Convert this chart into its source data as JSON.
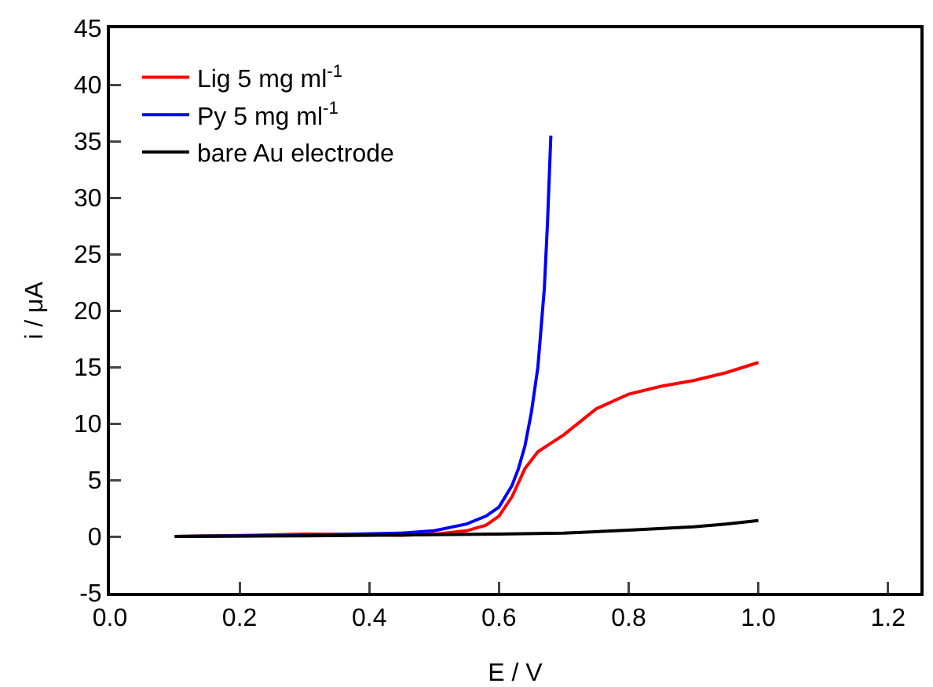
{
  "chart_data": {
    "type": "line",
    "xlabel": "E / V",
    "ylabel": "i / μA",
    "xlim": [
      0,
      1.25
    ],
    "ylim": [
      -5,
      45
    ],
    "xticks": [
      {
        "value": 0,
        "label": "0.0"
      },
      0.2,
      0.4,
      0.6,
      0.8,
      {
        "value": 1,
        "label": "1.0"
      },
      1.2
    ],
    "yticks": [
      -5,
      0,
      5,
      10,
      15,
      20,
      25,
      30,
      35,
      40,
      45
    ],
    "grid": false,
    "legend": "top left",
    "line_style": "solid",
    "marker": "none",
    "series": [
      {
        "name": "Lig 5 mg ml$^{-1}$",
        "color": "#ff0000",
        "x": [
          0.1,
          0.22,
          0.3,
          0.4,
          0.45,
          0.5,
          0.55,
          0.58,
          0.6,
          0.62,
          0.64,
          0.66,
          0.7,
          0.75,
          0.8,
          0.85,
          0.9,
          0.95,
          1.0
        ],
        "values": [
          0,
          0.1,
          0.2,
          0.15,
          0.1,
          0.2,
          0.5,
          1.0,
          1.8,
          3.5,
          6,
          7.5,
          9,
          11.3,
          12.6,
          13.3,
          13.8,
          14.5,
          15.4
        ]
      },
      {
        "name": "Py 5 mg ml$^{-1}$",
        "color": "#0000ff",
        "x": [
          0.1,
          0.3,
          0.45,
          0.5,
          0.55,
          0.58,
          0.6,
          0.62,
          0.63,
          0.64,
          0.65,
          0.66,
          0.67,
          0.675,
          0.68
        ],
        "values": [
          0,
          0.1,
          0.3,
          0.5,
          1.1,
          1.8,
          2.6,
          4.5,
          6,
          8,
          11,
          15,
          22,
          28,
          35.5
        ]
      },
      {
        "name": "bare Au electrode",
        "color": "#000000",
        "x": [
          0.1,
          0.3,
          0.5,
          0.6,
          0.7,
          0.8,
          0.9,
          0.95,
          1.0
        ],
        "values": [
          0,
          0.05,
          0.15,
          0.2,
          0.3,
          0.55,
          0.85,
          1.1,
          1.4
        ]
      }
    ]
  }
}
